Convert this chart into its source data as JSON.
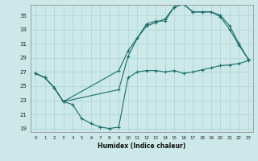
{
  "xlabel": "Humidex (Indice chaleur)",
  "xlim": [
    -0.5,
    23.5
  ],
  "ylim": [
    18.5,
    36.5
  ],
  "yticks": [
    19,
    21,
    23,
    25,
    27,
    29,
    31,
    33,
    35
  ],
  "xticks": [
    0,
    1,
    2,
    3,
    4,
    5,
    6,
    7,
    8,
    9,
    10,
    11,
    12,
    13,
    14,
    15,
    16,
    17,
    18,
    19,
    20,
    21,
    22,
    23
  ],
  "bg_color": "#cce8e8",
  "line_color": "#1a6e6a",
  "grid_color": "#b0d8d8",
  "line1_x": [
    0,
    1,
    2,
    3,
    4,
    5,
    6,
    7,
    8,
    9,
    10,
    11,
    12,
    13,
    14,
    15,
    16,
    17,
    18,
    19,
    20,
    21,
    22,
    23
  ],
  "line1_y": [
    26.8,
    26.2,
    24.8,
    22.8,
    22.4,
    20.4,
    19.7,
    19.2,
    19.0,
    19.2,
    26.2,
    27.0,
    27.2,
    27.2,
    27.0,
    27.2,
    26.8,
    27.0,
    27.3,
    27.6,
    27.9,
    28.0,
    28.2,
    28.6
  ],
  "line2_x": [
    0,
    1,
    2,
    3,
    9,
    10,
    11,
    12,
    13,
    14,
    15,
    16,
    17,
    18,
    19,
    20,
    21,
    22,
    23
  ],
  "line2_y": [
    26.8,
    26.2,
    24.8,
    22.8,
    27.2,
    30.0,
    31.8,
    33.8,
    34.2,
    34.2,
    36.2,
    36.6,
    35.5,
    35.5,
    35.5,
    35.0,
    33.5,
    31.0,
    28.8
  ],
  "line3_x": [
    0,
    1,
    2,
    3,
    9,
    10,
    11,
    12,
    13,
    14,
    15,
    16,
    17,
    18,
    19,
    20,
    21,
    22,
    23
  ],
  "line3_y": [
    26.8,
    26.2,
    24.8,
    22.8,
    24.5,
    29.2,
    31.8,
    33.5,
    34.0,
    34.5,
    36.2,
    36.6,
    35.5,
    35.5,
    35.5,
    34.8,
    33.0,
    30.8,
    28.8
  ]
}
